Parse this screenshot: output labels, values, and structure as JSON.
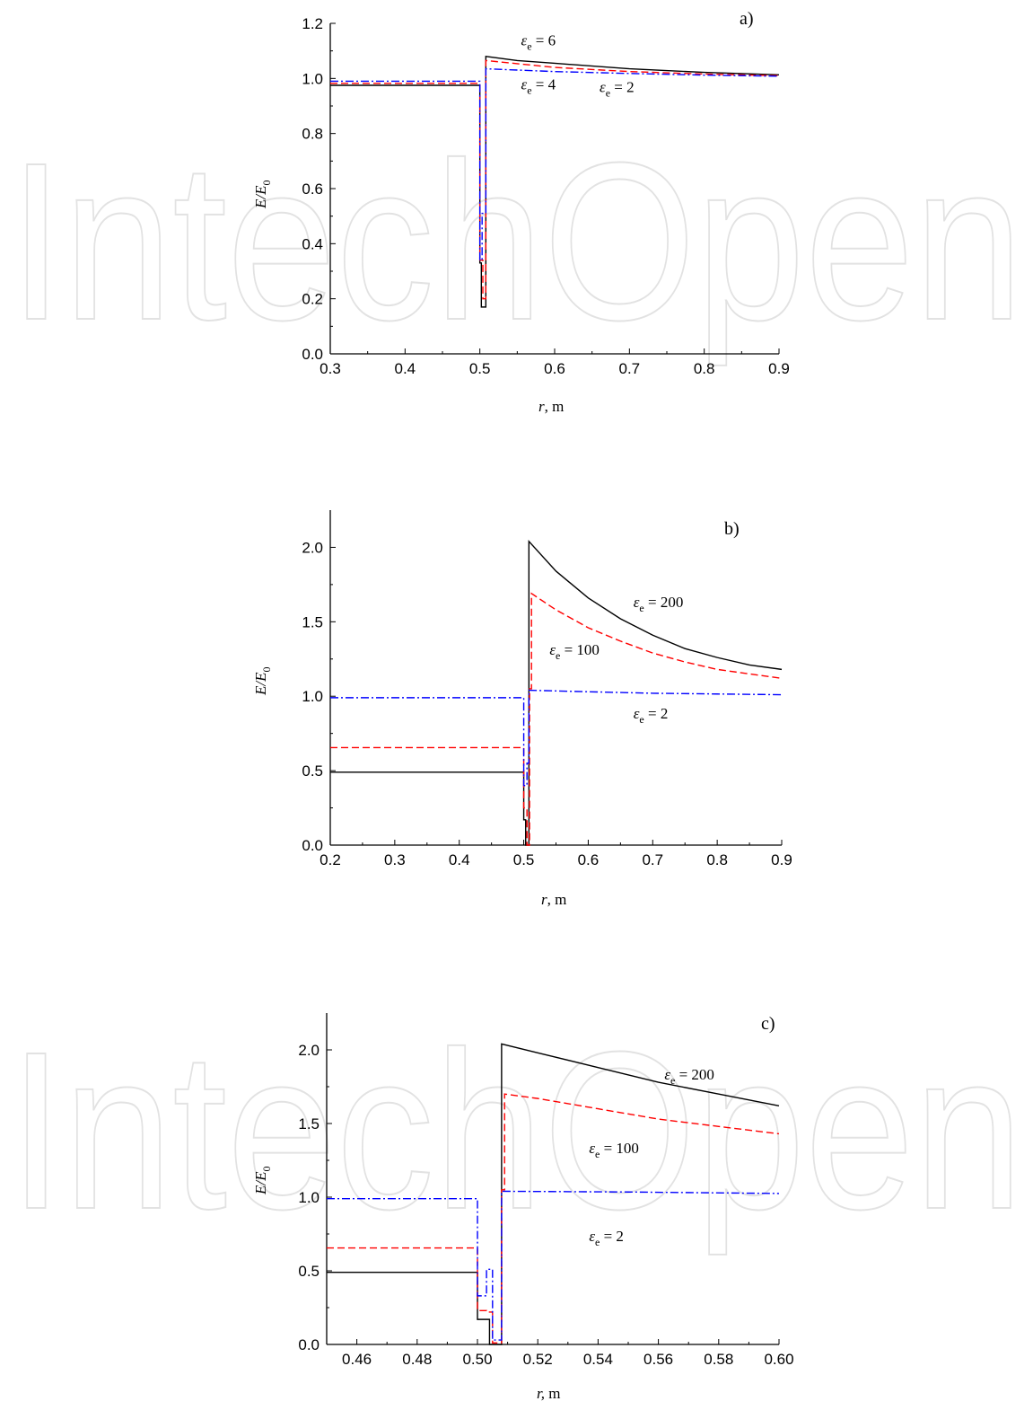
{
  "watermark": "IntechOpen",
  "colors": {
    "black": "#000000",
    "red": "#ff0000",
    "blue": "#0000ff",
    "watermark": "#e2e2e2"
  },
  "chart_data": [
    {
      "type": "line",
      "panel_label": "a)",
      "xlabel": {
        "main": "r",
        "rest": ", m"
      },
      "ylabel": {
        "a": "E",
        "b": "E",
        "b_sub": "0"
      },
      "xlim": [
        0.3,
        0.9
      ],
      "ylim": [
        0.0,
        1.2
      ],
      "xticks": [
        "0.3",
        "0.4",
        "0.5",
        "0.6",
        "0.7",
        "0.8",
        "0.9"
      ],
      "yticks": [
        "0.0",
        "0.2",
        "0.4",
        "0.6",
        "0.8",
        "1.0",
        "1.2"
      ],
      "grid": false,
      "series": [
        {
          "style": "solid",
          "color": "#000000",
          "points": [
            [
              0.3,
              0.975
            ],
            [
              0.5,
              0.975
            ],
            [
              0.5,
              0.33
            ],
            [
              0.502,
              0.33
            ],
            [
              0.502,
              0.17
            ],
            [
              0.508,
              0.17
            ],
            [
              0.508,
              1.08
            ],
            [
              0.55,
              1.065
            ],
            [
              0.6,
              1.055
            ],
            [
              0.7,
              1.035
            ],
            [
              0.8,
              1.022
            ],
            [
              0.9,
              1.013
            ]
          ]
        },
        {
          "style": "dashed",
          "color": "#ff0000",
          "points": [
            [
              0.3,
              0.982
            ],
            [
              0.5,
              0.982
            ],
            [
              0.5,
              0.34
            ],
            [
              0.504,
              0.34
            ],
            [
              0.504,
              0.2
            ],
            [
              0.508,
              0.2
            ],
            [
              0.508,
              1.065
            ],
            [
              0.6,
              1.04
            ],
            [
              0.7,
              1.025
            ],
            [
              0.8,
              1.016
            ],
            [
              0.9,
              1.01
            ]
          ]
        },
        {
          "style": "dashdot",
          "color": "#0000ff",
          "points": [
            [
              0.3,
              0.99
            ],
            [
              0.5,
              0.99
            ],
            [
              0.5,
              0.34
            ],
            [
              0.503,
              0.34
            ],
            [
              0.503,
              0.51
            ],
            [
              0.508,
              0.51
            ],
            [
              0.508,
              1.035
            ],
            [
              0.6,
              1.025
            ],
            [
              0.7,
              1.018
            ],
            [
              0.8,
              1.012
            ],
            [
              0.9,
              1.008
            ]
          ]
        }
      ],
      "annotations": [
        {
          "sym": "ε",
          "sub": "e",
          "text": " = 6",
          "x": 0.555,
          "y": 1.12
        },
        {
          "sym": "ε",
          "sub": "e",
          "text": " = 4",
          "x": 0.555,
          "y": 0.96
        },
        {
          "sym": "ε",
          "sub": "e",
          "text": " = 2",
          "x": 0.66,
          "y": 0.95
        }
      ]
    },
    {
      "type": "line",
      "panel_label": "b)",
      "xlabel": {
        "main": "r",
        "rest": ", m"
      },
      "ylabel": {
        "a": "E",
        "b": "E",
        "b_sub": "0"
      },
      "xlim": [
        0.2,
        0.9
      ],
      "ylim": [
        0.0,
        2.25
      ],
      "xticks": [
        "0.2",
        "0.3",
        "0.4",
        "0.5",
        "0.6",
        "0.7",
        "0.8",
        "0.9"
      ],
      "yticks": [
        "0.0",
        "0.5",
        "1.0",
        "1.5",
        "2.0"
      ],
      "grid": false,
      "series": [
        {
          "style": "solid",
          "color": "#000000",
          "points": [
            [
              0.2,
              0.49
            ],
            [
              0.5,
              0.49
            ],
            [
              0.5,
              0.17
            ],
            [
              0.503,
              0.17
            ],
            [
              0.503,
              0.0
            ],
            [
              0.508,
              0.0
            ],
            [
              0.508,
              2.04
            ],
            [
              0.55,
              1.84
            ],
            [
              0.6,
              1.66
            ],
            [
              0.65,
              1.52
            ],
            [
              0.7,
              1.41
            ],
            [
              0.75,
              1.32
            ],
            [
              0.8,
              1.26
            ],
            [
              0.85,
              1.21
            ],
            [
              0.9,
              1.18
            ]
          ]
        },
        {
          "style": "dashed",
          "color": "#ff0000",
          "points": [
            [
              0.2,
              0.655
            ],
            [
              0.5,
              0.655
            ],
            [
              0.5,
              0.25
            ],
            [
              0.505,
              0.25
            ],
            [
              0.505,
              0.0
            ],
            [
              0.509,
              0.0
            ],
            [
              0.509,
              1.05
            ],
            [
              0.512,
              1.05
            ],
            [
              0.512,
              1.69
            ],
            [
              0.55,
              1.58
            ],
            [
              0.6,
              1.46
            ],
            [
              0.65,
              1.37
            ],
            [
              0.7,
              1.29
            ],
            [
              0.75,
              1.23
            ],
            [
              0.8,
              1.18
            ],
            [
              0.85,
              1.15
            ],
            [
              0.9,
              1.12
            ]
          ]
        },
        {
          "style": "dashdot",
          "color": "#0000ff",
          "points": [
            [
              0.2,
              0.99
            ],
            [
              0.5,
              0.99
            ],
            [
              0.5,
              0.4
            ],
            [
              0.505,
              0.4
            ],
            [
              0.505,
              0.55
            ],
            [
              0.508,
              0.55
            ],
            [
              0.508,
              1.04
            ],
            [
              0.6,
              1.03
            ],
            [
              0.7,
              1.02
            ],
            [
              0.8,
              1.015
            ],
            [
              0.9,
              1.01
            ]
          ]
        }
      ],
      "annotations": [
        {
          "sym": "ε",
          "sub": "e",
          "text": " = 200",
          "x": 0.67,
          "y": 1.6
        },
        {
          "sym": "ε",
          "sub": "e",
          "text": " = 100",
          "x": 0.54,
          "y": 1.28
        },
        {
          "sym": "ε",
          "sub": "e",
          "text": " = 2",
          "x": 0.67,
          "y": 0.85
        }
      ]
    },
    {
      "type": "line",
      "panel_label": "c)",
      "xlabel": {
        "main": "r,",
        "rest": " m"
      },
      "ylabel": {
        "a": "E",
        "b": "E",
        "b_sub": "0"
      },
      "xlim": [
        0.45,
        0.6
      ],
      "ylim": [
        0.0,
        2.25
      ],
      "xticks": [
        "0.46",
        "0.48",
        "0.50",
        "0.52",
        "0.54",
        "0.56",
        "0.58",
        "0.60"
      ],
      "yticks": [
        "0.0",
        "0.5",
        "1.0",
        "1.5",
        "2.0"
      ],
      "grid": false,
      "series": [
        {
          "style": "solid",
          "color": "#000000",
          "points": [
            [
              0.45,
              0.49
            ],
            [
              0.5,
              0.49
            ],
            [
              0.5,
              0.17
            ],
            [
              0.504,
              0.17
            ],
            [
              0.504,
              0.0
            ],
            [
              0.508,
              0.0
            ],
            [
              0.508,
              2.04
            ],
            [
              0.52,
              1.98
            ],
            [
              0.54,
              1.88
            ],
            [
              0.56,
              1.78
            ],
            [
              0.58,
              1.7
            ],
            [
              0.6,
              1.62
            ]
          ]
        },
        {
          "style": "dashed",
          "color": "#ff0000",
          "points": [
            [
              0.45,
              0.655
            ],
            [
              0.5,
              0.655
            ],
            [
              0.5,
              0.23
            ],
            [
              0.503,
              0.23
            ],
            [
              0.503,
              0.22
            ],
            [
              0.505,
              0.22
            ],
            [
              0.505,
              0.01
            ],
            [
              0.508,
              0.01
            ],
            [
              0.508,
              1.05
            ],
            [
              0.509,
              1.05
            ],
            [
              0.509,
              1.7
            ],
            [
              0.52,
              1.67
            ],
            [
              0.54,
              1.6
            ],
            [
              0.56,
              1.53
            ],
            [
              0.58,
              1.48
            ],
            [
              0.6,
              1.43
            ]
          ]
        },
        {
          "style": "dashdot",
          "color": "#0000ff",
          "points": [
            [
              0.45,
              0.99
            ],
            [
              0.5,
              0.99
            ],
            [
              0.5,
              0.33
            ],
            [
              0.503,
              0.33
            ],
            [
              0.503,
              0.51
            ],
            [
              0.505,
              0.51
            ],
            [
              0.505,
              0.03
            ],
            [
              0.508,
              0.03
            ],
            [
              0.508,
              1.04
            ],
            [
              0.55,
              1.035
            ],
            [
              0.6,
              1.025
            ]
          ]
        }
      ],
      "annotations": [
        {
          "sym": "ε",
          "sub": "e",
          "text": " = 200",
          "x": 0.562,
          "y": 1.8
        },
        {
          "sym": "ε",
          "sub": "e",
          "text": " = 100",
          "x": 0.537,
          "y": 1.3
        },
        {
          "sym": "ε",
          "sub": "e",
          "text": " = 2",
          "x": 0.537,
          "y": 0.7
        }
      ]
    }
  ]
}
